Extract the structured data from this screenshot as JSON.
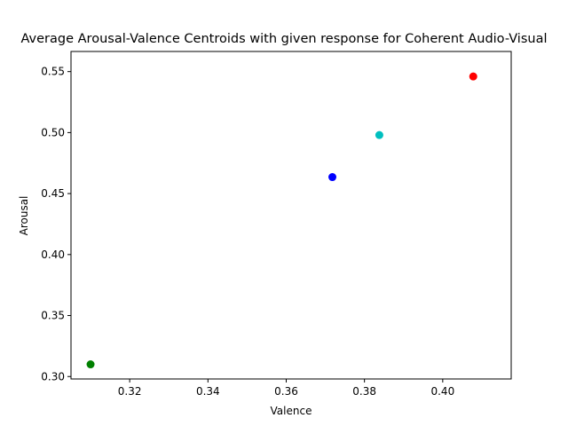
{
  "chart_data": {
    "type": "scatter",
    "title": "Average Arousal-Valence Centroids with given response for Coherent Audio-Visual",
    "xlabel": "Valence",
    "ylabel": "Arousal",
    "xlim": [
      0.305,
      0.4175
    ],
    "ylim": [
      0.298,
      0.5665
    ],
    "xticks": [
      0.32,
      0.34,
      0.36,
      0.38,
      0.4
    ],
    "xtick_labels": [
      "0.32",
      "0.34",
      "0.36",
      "0.38",
      "0.40"
    ],
    "yticks": [
      0.3,
      0.35,
      0.4,
      0.45,
      0.5,
      0.55
    ],
    "ytick_labels": [
      "0.30",
      "0.35",
      "0.40",
      "0.45",
      "0.50",
      "0.55"
    ],
    "grid": false,
    "points": [
      {
        "x": 0.31,
        "y": 0.31,
        "color": "#008000"
      },
      {
        "x": 0.3718,
        "y": 0.4635,
        "color": "#0000ff"
      },
      {
        "x": 0.3838,
        "y": 0.498,
        "color": "#00bfbf"
      },
      {
        "x": 0.4078,
        "y": 0.546,
        "color": "#ff0000"
      }
    ]
  }
}
